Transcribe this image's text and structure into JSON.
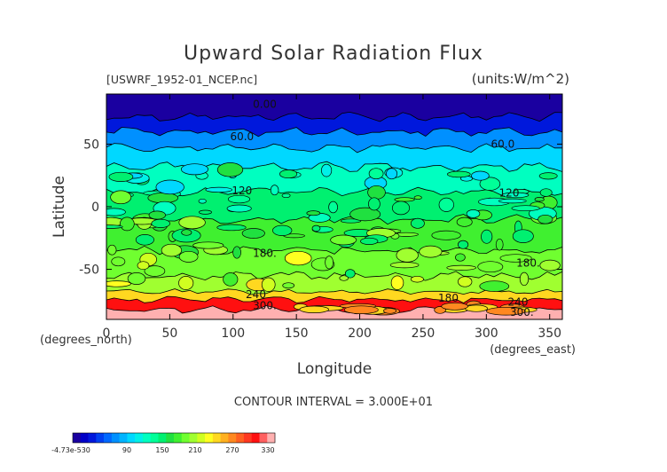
{
  "chart_data": {
    "type": "heatmap",
    "title": "Upward Solar Radiation Flux",
    "source_label": "[USWRF_1952-01_NCEP.nc]",
    "units_label": "(units:W/m^2)",
    "xlabel": "Longitude",
    "ylabel": "Latitude",
    "xunits": "(degrees_east)",
    "yunits": "(degrees_north)",
    "xlim": [
      0,
      360
    ],
    "ylim": [
      -90,
      90
    ],
    "x_ticks": [
      0,
      50,
      100,
      150,
      200,
      250,
      300,
      350
    ],
    "y_ticks": [
      50,
      0,
      -50
    ],
    "contour_interval": "CONTOUR INTERVAL = 3.000E+01",
    "contour_labels": [
      {
        "text": "0.00",
        "lon": 125,
        "lat": 79
      },
      {
        "text": "60.0",
        "lon": 107,
        "lat": 53
      },
      {
        "text": "60.0",
        "lon": 313,
        "lat": 47
      },
      {
        "text": "120",
        "lon": 107,
        "lat": 10
      },
      {
        "text": "120",
        "lon": 318,
        "lat": 8
      },
      {
        "text": "180.",
        "lon": 125,
        "lat": -40
      },
      {
        "text": "180.",
        "lon": 333,
        "lat": -48
      },
      {
        "text": "180",
        "lon": 270,
        "lat": -76
      },
      {
        "text": "240",
        "lon": 118,
        "lat": -73
      },
      {
        "text": "300.",
        "lon": 125,
        "lat": -82
      },
      {
        "text": "240",
        "lon": 325,
        "lat": -79
      },
      {
        "text": "300.",
        "lon": 328,
        "lat": -87
      }
    ],
    "latitude_band_values": [
      {
        "lat_from": 90,
        "lat_to": 72,
        "value": 0
      },
      {
        "lat_from": 72,
        "lat_to": 60,
        "value": 30
      },
      {
        "lat_from": 60,
        "lat_to": 47,
        "value": 60
      },
      {
        "lat_from": 47,
        "lat_to": 32,
        "value": 90
      },
      {
        "lat_from": 32,
        "lat_to": 12,
        "value": 120
      },
      {
        "lat_from": 12,
        "lat_to": -10,
        "value": 150
      },
      {
        "lat_from": -10,
        "lat_to": -35,
        "value": 165
      },
      {
        "lat_from": -35,
        "lat_to": -55,
        "value": 180
      },
      {
        "lat_from": -55,
        "lat_to": -68,
        "value": 200
      },
      {
        "lat_from": -68,
        "lat_to": -74,
        "value": 240
      },
      {
        "lat_from": -74,
        "lat_to": -82,
        "value": 300
      },
      {
        "lat_from": -82,
        "lat_to": -90,
        "value": 330
      }
    ],
    "colorbar": {
      "labels": [
        "-4.73e-530",
        "90",
        "150",
        "210",
        "270",
        "330"
      ],
      "colors": [
        "#1a00a0",
        "#0000c8",
        "#0018dc",
        "#0040f0",
        "#0068ff",
        "#0090ff",
        "#00b4ff",
        "#00d8ff",
        "#00f0e8",
        "#00ffc0",
        "#00ff98",
        "#00f070",
        "#20e040",
        "#40f030",
        "#70ff30",
        "#a0ff30",
        "#d0ff20",
        "#ffff20",
        "#ffd820",
        "#ffb020",
        "#ff8820",
        "#ff6020",
        "#ff3820",
        "#ff1010",
        "#ff6060",
        "#ffb0b0"
      ]
    },
    "palette": {
      "purple": "#7a0ab0",
      "navy": "#0008a8",
      "blue": "#0050f0",
      "sky": "#00b0ff",
      "cyan": "#00e8f8",
      "teal": "#00ffc8",
      "green": "#00e060",
      "lime": "#50ff30",
      "yellow": "#f8ff20",
      "orange": "#ff9010",
      "red": "#ff1010",
      "pink": "#ff8080"
    }
  }
}
